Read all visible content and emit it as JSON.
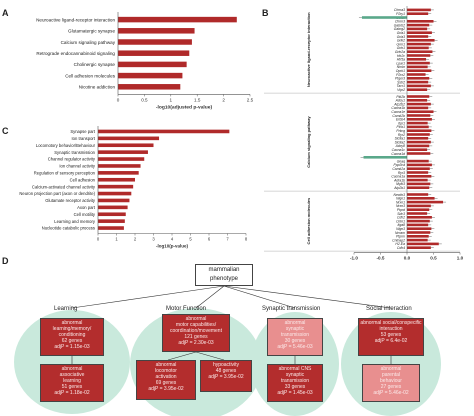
{
  "panels": {
    "a": "A",
    "b": "B",
    "c": "C",
    "d": "D"
  },
  "chart_data": [
    {
      "panel": "A",
      "type": "bar",
      "orientation": "horizontal",
      "categories": [
        "Neuroactive ligand-receptor interaction",
        "Glutamatergic synapse",
        "Calcium signaling pathway",
        "Retrograde endocannabinoid signaling",
        "Cholinergic synapse",
        "Cell adhesion molecules",
        "Nicotine addiction"
      ],
      "values": [
        2.25,
        1.45,
        1.4,
        1.35,
        1.3,
        1.22,
        1.18
      ],
      "xlim": [
        0,
        2.5
      ],
      "xticks": [
        "0",
        "0.5",
        "1",
        "1.5",
        "2",
        "2.5"
      ],
      "xlabel": "-log10(adjusted p-value)",
      "color": "#b02a2a"
    },
    {
      "panel": "C",
      "type": "bar",
      "orientation": "horizontal",
      "categories": [
        "Synapse part",
        "Ion transport",
        "Locomotory behavior/Behaviour",
        "Synaptic transmission",
        "Channel regulator activity",
        "Ion channel activity",
        "Regulation of sensory perception",
        "Cell adhesion",
        "Calcium-activated channel activity",
        "Neuron projection part (axon or dendrite)",
        "Glutamate receptor activity",
        "Axon part",
        "Cell motility",
        "Learning and memory",
        "Nucleotide catabolic process"
      ],
      "values": [
        7.1,
        3.3,
        3.0,
        2.7,
        2.5,
        2.3,
        2.2,
        2.0,
        1.9,
        1.8,
        1.7,
        1.6,
        1.5,
        1.45,
        1.4
      ],
      "xlim": [
        0,
        8
      ],
      "xticks": [
        "0",
        "1",
        "2",
        "3",
        "4",
        "5",
        "6",
        "7",
        "8"
      ],
      "xlabel": "-log10(p-value)",
      "color": "#b02a2a"
    },
    {
      "panel": "B",
      "type": "bar",
      "orientation": "horizontal",
      "xlim": [
        -1.0,
        1.0
      ],
      "xticks": [
        "-1.0",
        "-0.5",
        "0.0",
        "0.5",
        "1.0"
      ],
      "xlabel": "Mean change in expression (transformed counts - control mean)",
      "groups": [
        {
          "label": "Neuroactive ligand-receptor interaction",
          "genes": [
            "Chrna3",
            "P2ry1",
            "Cckbr",
            "Chrm3",
            "Gabrb2",
            "Gabrg2",
            "Gria1",
            "Gria3",
            "Grik2",
            "Grm1",
            "Grin1",
            "Grin2a",
            "Htr2c",
            "Htr5a",
            "Lpar1",
            "Nmbr",
            "Oprk1",
            "P2rx2",
            "Ptger3",
            "Sstr2",
            "Tacr1",
            "Vipr2"
          ],
          "values": [
            0.45,
            0.4,
            -0.85,
            0.5,
            0.42,
            0.38,
            0.47,
            0.4,
            0.52,
            0.45,
            0.41,
            0.48,
            0.44,
            0.36,
            0.43,
            0.39,
            0.46,
            0.35,
            0.42,
            0.4,
            0.45,
            0.38
          ]
        },
        {
          "label": "Calcium signaling pathway",
          "genes": [
            "Ptk2b",
            "Adcy1",
            "Atp2b2",
            "Cacna1b",
            "Cacna1e",
            "Camk2b",
            "Erbb4",
            "Itpr1",
            "Plcb1",
            "Prkcg",
            "Ryr2",
            "Slc8a1",
            "Slc8a2",
            "Adcy8",
            "Cacna1c",
            "Cacna1d",
            "Chrna7",
            "Gnaq",
            "Ppp3ca",
            "Camk2a",
            "Ryr3",
            "Cacna1a",
            "Adra1b",
            "Mylk3",
            "Atp2b1"
          ],
          "values": [
            0.42,
            0.38,
            0.45,
            0.4,
            0.5,
            0.44,
            0.47,
            0.39,
            0.41,
            0.46,
            0.43,
            0.4,
            0.45,
            0.42,
            0.38,
            0.44,
            -0.82,
            0.41,
            0.47,
            0.43,
            0.4,
            0.46,
            0.39,
            0.44,
            0.42
          ]
        },
        {
          "label": "Cell adhesion molecules",
          "genes": [
            "Nectin3",
            "Nlgn1",
            "Nrxn1",
            "Nrxn3",
            "Ptprd",
            "Sdc3",
            "Cdh2",
            "Cntn1",
            "Itga8",
            "Nlgn3",
            "Nrcam",
            "Ptprm",
            "Cntnap2",
            "H2-Ea",
            "Cdh4"
          ],
          "values": [
            0.4,
            0.52,
            0.68,
            0.45,
            0.42,
            0.38,
            0.47,
            0.43,
            0.4,
            0.46,
            0.44,
            0.41,
            0.39,
            0.6,
            0.45
          ]
        }
      ],
      "color": "#b02a2a",
      "negative_color": "#5aa88a"
    }
  ],
  "tree": {
    "root": "mammalian phenotype",
    "categories": [
      "Learning",
      "Motor Function",
      "Synaptic transmission",
      "Social interaction"
    ],
    "learning": {
      "node1": [
        "abnormal",
        "learning/memory/",
        "conditioning",
        "62 genes",
        "adjP = 1.15e-03"
      ],
      "node2": [
        "abnormal",
        "associative",
        "learning",
        "51 genes",
        "adjP = 1.18e-02"
      ]
    },
    "motor": {
      "node1": [
        "abnormal",
        "motor capabilities/",
        "coordination/movement",
        "121 genes",
        "adjP = 2.30e-03"
      ],
      "node2": [
        "abnormal",
        "locomotor",
        "activation",
        "69 genes",
        "adjP = 3.95e-02"
      ],
      "node3": [
        "hypoactivity",
        "48 genes",
        "adjP = 3.95e-02"
      ]
    },
    "synaptic": {
      "node1": [
        "abnormal",
        "synaptic",
        "transmission",
        "30 genes",
        "adjP = 5.46e-03"
      ],
      "node2": [
        "abnormal CNS",
        "synaptic",
        "transmission",
        "33 genes",
        "adjP = 1.45e-03"
      ]
    },
    "social": {
      "node1": [
        "abnormal social/conspecific",
        "interaction",
        "53 genes",
        "adjP = 6.4e-02"
      ],
      "node2": [
        "abnormal",
        "parental",
        "behaviour",
        "27 genes",
        "adjP = 5.46e-02"
      ]
    }
  }
}
